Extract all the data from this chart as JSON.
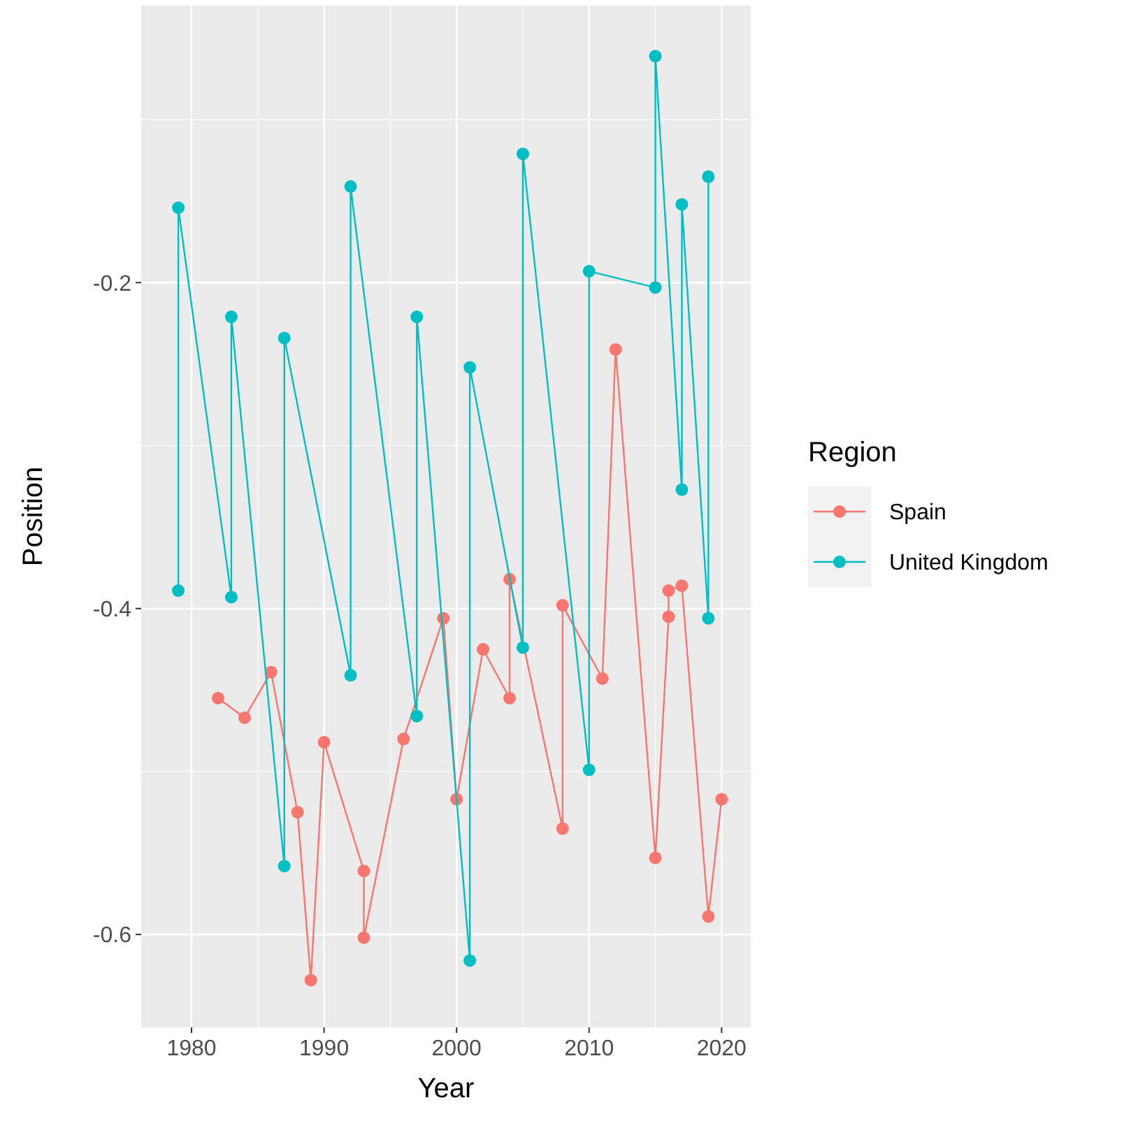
{
  "chart_data": {
    "type": "line",
    "xlabel": "Year",
    "ylabel": "Position",
    "legend_title": "Region",
    "xlim": [
      1976.2,
      2022.2
    ],
    "xticks": [
      1980,
      1990,
      2000,
      2010,
      2020
    ],
    "ylim": [
      -0.657,
      -0.03
    ],
    "yticks": [
      -0.6,
      -0.4,
      -0.2
    ],
    "grid": true,
    "legend": "right",
    "marker": "circle",
    "line_style": "solid",
    "series": [
      {
        "name": "Spain",
        "color": "#f8766d",
        "x": [
          1982,
          1984,
          1986,
          1988,
          1989,
          1990,
          1993,
          1993,
          1996,
          1999,
          2000,
          2002,
          2004,
          2004,
          2008,
          2008,
          2011,
          2012,
          2015,
          2016,
          2016,
          2017,
          2019,
          2020
        ],
        "values": [
          -0.455,
          -0.467,
          -0.439,
          -0.525,
          -0.628,
          -0.482,
          -0.561,
          -0.602,
          -0.48,
          -0.406,
          -0.517,
          -0.425,
          -0.455,
          -0.382,
          -0.535,
          -0.398,
          -0.443,
          -0.241,
          -0.553,
          -0.405,
          -0.389,
          -0.386,
          -0.589,
          -0.517
        ]
      },
      {
        "name": "United Kingdom",
        "color": "#00bfc4",
        "x": [
          1979,
          1979,
          1983,
          1983,
          1987,
          1987,
          1992,
          1992,
          1997,
          1997,
          2001,
          2001,
          2005,
          2005,
          2010,
          2010,
          2015,
          2015,
          2017,
          2017,
          2019,
          2019
        ],
        "values": [
          -0.389,
          -0.154,
          -0.393,
          -0.221,
          -0.558,
          -0.234,
          -0.441,
          -0.141,
          -0.466,
          -0.221,
          -0.616,
          -0.252,
          -0.424,
          -0.121,
          -0.499,
          -0.193,
          -0.203,
          -0.061,
          -0.327,
          -0.152,
          -0.406,
          -0.135
        ]
      }
    ]
  }
}
